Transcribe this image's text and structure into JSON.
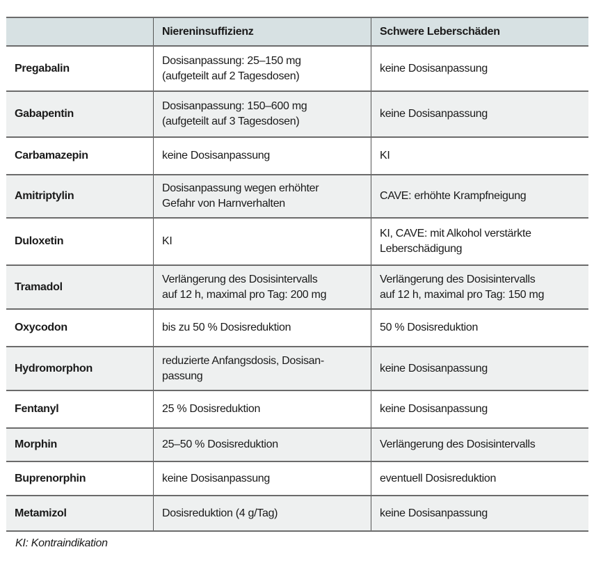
{
  "table": {
    "headers": [
      "",
      "Niereninsuffizienz",
      "Schwere Leberschäden"
    ],
    "rows": [
      {
        "drug": "Pregabalin",
        "kidney": "Dosisanpassung: 25–150 mg\n(aufgeteilt auf 2 Tagesdosen)",
        "liver": "keine Dosisanpassung"
      },
      {
        "drug": "Gabapentin",
        "kidney": "Dosisanpassung: 150–600 mg\n(aufgeteilt auf 3 Tagesdosen)",
        "liver": "keine Dosisanpassung"
      },
      {
        "drug": "Carbamazepin",
        "kidney": "keine Dosisanpassung",
        "liver": "KI"
      },
      {
        "drug": "Amitriptylin",
        "kidney": "Dosisanpassung wegen erhöhter\nGefahr von Harnverhalten",
        "liver": "CAVE: erhöhte Krampfneigung"
      },
      {
        "drug": "Duloxetin",
        "kidney": "KI",
        "liver": "KI, CAVE: mit Alkohol verstärkte\nLeberschädigung"
      },
      {
        "drug": "Tramadol",
        "kidney": "Verlängerung des Dosisintervalls\nauf 12 h, maximal pro Tag: 200 mg",
        "liver": "Verlängerung des Dosisintervalls\nauf 12 h, maximal pro Tag: 150 mg"
      },
      {
        "drug": "Oxycodon",
        "kidney": "bis zu 50 % Dosisreduktion",
        "liver": "50 % Dosisreduktion"
      },
      {
        "drug": "Hydromorphon",
        "kidney": "reduzierte Anfangsdosis, Dosisan-\npassung",
        "liver": "keine Dosisanpassung"
      },
      {
        "drug": "Fentanyl",
        "kidney": "25 % Dosisreduktion",
        "liver": "keine Dosisanpassung"
      },
      {
        "drug": "Morphin",
        "kidney": "25–50 % Dosisreduktion",
        "liver": "Verlängerung des Dosisintervalls"
      },
      {
        "drug": "Buprenorphin",
        "kidney": "keine Dosisanpassung",
        "liver": "eventuell Dosisreduktion"
      },
      {
        "drug": "Metamizol",
        "kidney": "Dosisreduktion (4 g/Tag)",
        "liver": "keine Dosisanpassung"
      }
    ]
  },
  "footnote": "KI: Kontraindikation"
}
